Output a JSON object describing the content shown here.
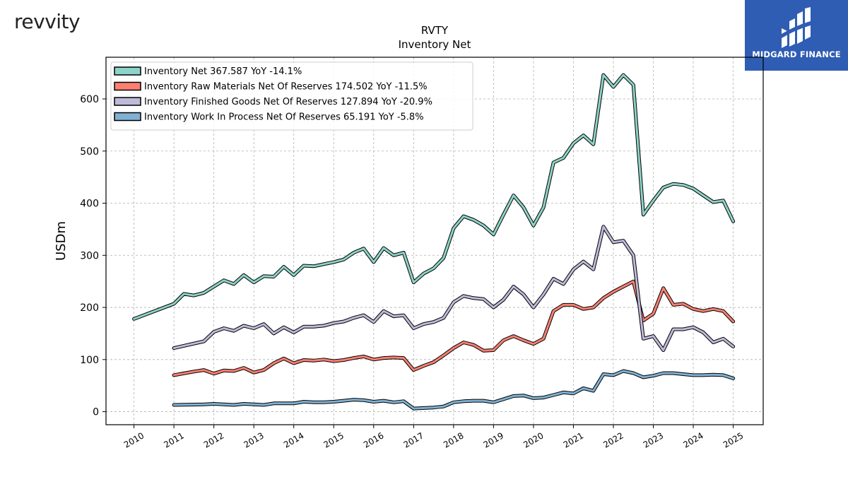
{
  "brand": {
    "logo_text": "revvity"
  },
  "finance_logo": {
    "name": "MIDGARD FINANCE",
    "color": "#2f5db3"
  },
  "chart_data": {
    "type": "line",
    "title": "RVTY",
    "subtitle": "Inventory Net",
    "xlabel": "",
    "ylabel": "USDm",
    "xlim": [
      2009.3,
      2025.75
    ],
    "ylim": [
      -25,
      680
    ],
    "xticks": [
      2010,
      2011,
      2012,
      2013,
      2014,
      2015,
      2016,
      2017,
      2018,
      2019,
      2020,
      2021,
      2022,
      2023,
      2024,
      2025
    ],
    "yticks": [
      0,
      100,
      200,
      300,
      400,
      500,
      600
    ],
    "grid": true,
    "legend_position": "top-left",
    "series": [
      {
        "name": "Inventory Net  367.587 YoY -14.1%",
        "color": "#8dd3c7",
        "points": [
          [
            2010.0,
            178
          ],
          [
            2011.0,
            207
          ],
          [
            2011.25,
            226
          ],
          [
            2011.5,
            223
          ],
          [
            2011.75,
            228
          ],
          [
            2012.0,
            240
          ],
          [
            2012.25,
            252
          ],
          [
            2012.5,
            245
          ],
          [
            2012.75,
            262
          ],
          [
            2013.0,
            248
          ],
          [
            2013.25,
            260
          ],
          [
            2013.5,
            259
          ],
          [
            2013.75,
            278
          ],
          [
            2014.0,
            262
          ],
          [
            2014.25,
            280
          ],
          [
            2014.5,
            279
          ],
          [
            2014.75,
            283
          ],
          [
            2015.0,
            287
          ],
          [
            2015.25,
            292
          ],
          [
            2015.5,
            305
          ],
          [
            2015.75,
            313
          ],
          [
            2016.0,
            287
          ],
          [
            2016.25,
            314
          ],
          [
            2016.5,
            300
          ],
          [
            2016.75,
            305
          ],
          [
            2017.0,
            248
          ],
          [
            2017.25,
            265
          ],
          [
            2017.5,
            275
          ],
          [
            2017.75,
            295
          ],
          [
            2018.0,
            352
          ],
          [
            2018.25,
            375
          ],
          [
            2018.5,
            368
          ],
          [
            2018.75,
            357
          ],
          [
            2019.0,
            340
          ],
          [
            2019.25,
            378
          ],
          [
            2019.5,
            415
          ],
          [
            2019.75,
            392
          ],
          [
            2020.0,
            357
          ],
          [
            2020.25,
            392
          ],
          [
            2020.5,
            478
          ],
          [
            2020.75,
            487
          ],
          [
            2021.0,
            515
          ],
          [
            2021.25,
            530
          ],
          [
            2021.5,
            513
          ],
          [
            2021.75,
            646
          ],
          [
            2022.0,
            623
          ],
          [
            2022.25,
            646
          ],
          [
            2022.5,
            627
          ],
          [
            2022.75,
            378
          ],
          [
            2023.0,
            405
          ],
          [
            2023.25,
            430
          ],
          [
            2023.5,
            437
          ],
          [
            2023.75,
            435
          ],
          [
            2024.0,
            428
          ],
          [
            2024.25,
            415
          ],
          [
            2024.5,
            402
          ],
          [
            2024.75,
            405
          ],
          [
            2025.0,
            365
          ]
        ]
      },
      {
        "name": "Inventory Raw Materials Net Of Reserves  174.502 YoY -11.5%",
        "color": "#fb8072",
        "points": [
          [
            2011.0,
            70
          ],
          [
            2011.5,
            77
          ],
          [
            2011.75,
            80
          ],
          [
            2012.0,
            73
          ],
          [
            2012.25,
            79
          ],
          [
            2012.5,
            78
          ],
          [
            2012.75,
            84
          ],
          [
            2013.0,
            75
          ],
          [
            2013.25,
            80
          ],
          [
            2013.5,
            93
          ],
          [
            2013.75,
            102
          ],
          [
            2014.0,
            93
          ],
          [
            2014.25,
            99
          ],
          [
            2014.5,
            98
          ],
          [
            2014.75,
            100
          ],
          [
            2015.0,
            97
          ],
          [
            2015.25,
            99
          ],
          [
            2015.5,
            103
          ],
          [
            2015.75,
            106
          ],
          [
            2016.0,
            100
          ],
          [
            2016.25,
            103
          ],
          [
            2016.5,
            104
          ],
          [
            2016.75,
            103
          ],
          [
            2017.0,
            80
          ],
          [
            2017.25,
            88
          ],
          [
            2017.5,
            95
          ],
          [
            2017.75,
            108
          ],
          [
            2018.0,
            122
          ],
          [
            2018.25,
            133
          ],
          [
            2018.5,
            128
          ],
          [
            2018.75,
            117
          ],
          [
            2019.0,
            118
          ],
          [
            2019.25,
            137
          ],
          [
            2019.5,
            145
          ],
          [
            2019.75,
            137
          ],
          [
            2020.0,
            130
          ],
          [
            2020.25,
            140
          ],
          [
            2020.5,
            193
          ],
          [
            2020.75,
            205
          ],
          [
            2021.0,
            205
          ],
          [
            2021.25,
            197
          ],
          [
            2021.5,
            200
          ],
          [
            2021.75,
            218
          ],
          [
            2022.0,
            230
          ],
          [
            2022.25,
            240
          ],
          [
            2022.5,
            250
          ],
          [
            2022.75,
            175
          ],
          [
            2023.0,
            188
          ],
          [
            2023.25,
            237
          ],
          [
            2023.5,
            205
          ],
          [
            2023.75,
            207
          ],
          [
            2024.0,
            197
          ],
          [
            2024.25,
            193
          ],
          [
            2024.5,
            197
          ],
          [
            2024.75,
            193
          ],
          [
            2025.0,
            173
          ]
        ]
      },
      {
        "name": "Inventory Finished Goods Net Of Reserves  127.894 YoY -20.9%",
        "color": "#bebada",
        "points": [
          [
            2011.0,
            122
          ],
          [
            2011.75,
            135
          ],
          [
            2012.0,
            153
          ],
          [
            2012.25,
            160
          ],
          [
            2012.5,
            155
          ],
          [
            2012.75,
            165
          ],
          [
            2013.0,
            160
          ],
          [
            2013.25,
            168
          ],
          [
            2013.5,
            150
          ],
          [
            2013.75,
            162
          ],
          [
            2014.0,
            152
          ],
          [
            2014.25,
            163
          ],
          [
            2014.5,
            163
          ],
          [
            2014.75,
            165
          ],
          [
            2015.0,
            170
          ],
          [
            2015.25,
            173
          ],
          [
            2015.5,
            180
          ],
          [
            2015.75,
            185
          ],
          [
            2016.0,
            172
          ],
          [
            2016.25,
            193
          ],
          [
            2016.5,
            183
          ],
          [
            2016.75,
            185
          ],
          [
            2017.0,
            160
          ],
          [
            2017.25,
            168
          ],
          [
            2017.5,
            172
          ],
          [
            2017.75,
            180
          ],
          [
            2018.0,
            210
          ],
          [
            2018.25,
            222
          ],
          [
            2018.5,
            218
          ],
          [
            2018.75,
            216
          ],
          [
            2019.0,
            200
          ],
          [
            2019.25,
            215
          ],
          [
            2019.5,
            240
          ],
          [
            2019.75,
            225
          ],
          [
            2020.0,
            200
          ],
          [
            2020.25,
            225
          ],
          [
            2020.5,
            255
          ],
          [
            2020.75,
            245
          ],
          [
            2021.0,
            273
          ],
          [
            2021.25,
            288
          ],
          [
            2021.5,
            273
          ],
          [
            2021.75,
            355
          ],
          [
            2022.0,
            325
          ],
          [
            2022.25,
            328
          ],
          [
            2022.5,
            300
          ],
          [
            2022.75,
            140
          ],
          [
            2023.0,
            145
          ],
          [
            2023.25,
            118
          ],
          [
            2023.5,
            158
          ],
          [
            2023.75,
            158
          ],
          [
            2024.0,
            162
          ],
          [
            2024.25,
            152
          ],
          [
            2024.5,
            133
          ],
          [
            2024.75,
            140
          ],
          [
            2025.0,
            125
          ]
        ]
      },
      {
        "name": "Inventory Work In Process Net Of Reserves  65.191 YoY -5.8%",
        "color": "#80b1d3",
        "points": [
          [
            2011.0,
            13
          ],
          [
            2011.75,
            14
          ],
          [
            2012.0,
            15
          ],
          [
            2012.5,
            13
          ],
          [
            2012.75,
            15
          ],
          [
            2013.0,
            14
          ],
          [
            2013.25,
            13
          ],
          [
            2013.5,
            16
          ],
          [
            2013.75,
            16
          ],
          [
            2014.0,
            16
          ],
          [
            2014.25,
            19
          ],
          [
            2014.5,
            18
          ],
          [
            2014.75,
            18
          ],
          [
            2015.0,
            19
          ],
          [
            2015.25,
            21
          ],
          [
            2015.5,
            23
          ],
          [
            2015.75,
            22
          ],
          [
            2016.0,
            19
          ],
          [
            2016.25,
            21
          ],
          [
            2016.5,
            18
          ],
          [
            2016.75,
            20
          ],
          [
            2017.0,
            6
          ],
          [
            2017.25,
            7
          ],
          [
            2017.5,
            8
          ],
          [
            2017.75,
            10
          ],
          [
            2018.0,
            18
          ],
          [
            2018.25,
            20
          ],
          [
            2018.5,
            21
          ],
          [
            2018.75,
            21
          ],
          [
            2019.0,
            18
          ],
          [
            2019.25,
            24
          ],
          [
            2019.5,
            30
          ],
          [
            2019.75,
            31
          ],
          [
            2020.0,
            26
          ],
          [
            2020.25,
            27
          ],
          [
            2020.5,
            32
          ],
          [
            2020.75,
            37
          ],
          [
            2021.0,
            35
          ],
          [
            2021.25,
            45
          ],
          [
            2021.5,
            40
          ],
          [
            2021.75,
            72
          ],
          [
            2022.0,
            70
          ],
          [
            2022.25,
            78
          ],
          [
            2022.5,
            74
          ],
          [
            2022.75,
            66
          ],
          [
            2023.0,
            69
          ],
          [
            2023.25,
            74
          ],
          [
            2023.5,
            74
          ],
          [
            2023.75,
            72
          ],
          [
            2024.0,
            70
          ],
          [
            2024.25,
            70
          ],
          [
            2024.5,
            71
          ],
          [
            2024.75,
            70
          ],
          [
            2025.0,
            64
          ]
        ]
      }
    ]
  }
}
